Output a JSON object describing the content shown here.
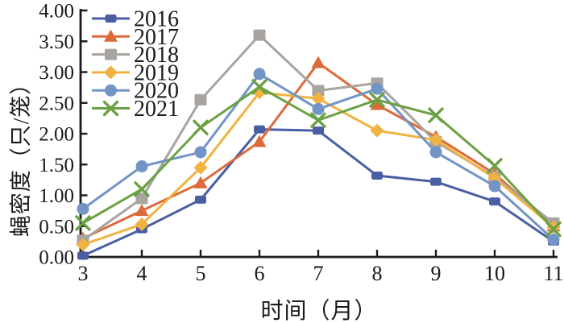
{
  "figure": {
    "background": "#ffffff",
    "text_color": "#1a1a1a"
  },
  "chart_data": {
    "type": "line",
    "title": "",
    "xlabel": "时间（月）",
    "ylabel": "蝇密度（只/笼）",
    "x": [
      3,
      4,
      5,
      6,
      7,
      8,
      9,
      10,
      11
    ],
    "xtick_labels": [
      "3",
      "4",
      "5",
      "6",
      "7",
      "8",
      "9",
      "10",
      "11"
    ],
    "ytick_labels": [
      "0.00",
      "0.50",
      "1.00",
      "1.50",
      "2.00",
      "2.50",
      "3.00",
      "3.50",
      "4.00"
    ],
    "ytick_values": [
      0,
      0.5,
      1,
      1.5,
      2,
      2.5,
      3,
      3.5,
      4
    ],
    "xlim": [
      3,
      11
    ],
    "ylim": [
      0,
      4
    ],
    "grid": false,
    "legend_position": "upper-left-inside",
    "series": [
      {
        "name": "2016",
        "color": "#4a5fa3",
        "marker": "square-small",
        "values": [
          0.02,
          0.45,
          0.93,
          2.07,
          2.05,
          1.32,
          1.22,
          0.9,
          0.25
        ]
      },
      {
        "name": "2017",
        "color": "#dd6a3a",
        "marker": "triangle",
        "values": [
          0.3,
          0.75,
          1.2,
          1.87,
          3.15,
          2.47,
          1.95,
          1.35,
          0.5
        ]
      },
      {
        "name": "2018",
        "color": "#a8a49f",
        "marker": "square",
        "values": [
          0.27,
          0.95,
          2.55,
          3.6,
          2.7,
          2.82,
          1.87,
          1.3,
          0.55
        ]
      },
      {
        "name": "2019",
        "color": "#f2b241",
        "marker": "diamond",
        "values": [
          0.2,
          0.53,
          1.45,
          2.67,
          2.57,
          2.05,
          1.9,
          1.28,
          0.48
        ]
      },
      {
        "name": "2020",
        "color": "#7294c7",
        "marker": "circle",
        "values": [
          0.78,
          1.47,
          1.7,
          2.97,
          2.4,
          2.73,
          1.7,
          1.15,
          0.28
        ]
      },
      {
        "name": "2021",
        "color": "#6ba144",
        "marker": "x",
        "values": [
          0.55,
          1.1,
          2.1,
          2.76,
          2.22,
          2.55,
          2.3,
          1.48,
          0.45
        ]
      }
    ]
  }
}
